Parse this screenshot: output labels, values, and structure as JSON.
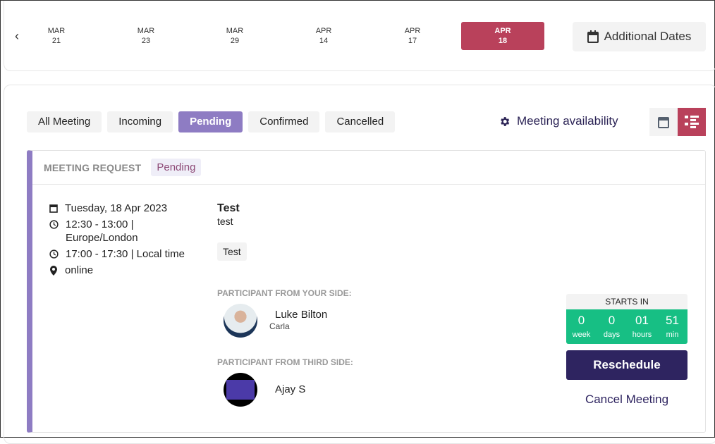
{
  "dates": [
    {
      "m": "MAR",
      "d": "21"
    },
    {
      "m": "MAR",
      "d": "23"
    },
    {
      "m": "MAR",
      "d": "29"
    },
    {
      "m": "APR",
      "d": "14"
    },
    {
      "m": "APR",
      "d": "17"
    },
    {
      "m": "APR",
      "d": "18",
      "selected": true
    }
  ],
  "additional_dates": "Additional Dates",
  "tabs": [
    "All Meeting",
    "Incoming",
    "Pending",
    "Confirmed",
    "Cancelled"
  ],
  "active_tab": "Pending",
  "availability": "Meeting availability",
  "colors": {
    "accent": "#b9415b",
    "purple": "#8e7cc3",
    "navy": "#2e2460",
    "green": "#17bf84"
  },
  "card": {
    "type": "MEETING REQUEST",
    "status": "Pending",
    "date": "Tuesday, 18 Apr 2023",
    "time1": "12:30 - 13:00 |",
    "tz": "Europe/London",
    "time2": "17:00 - 17:30 | Local time",
    "location": "online",
    "title": "Test",
    "description": "test",
    "tag": "Test",
    "your_side_label": "PARTICIPANT FROM YOUR SIDE:",
    "your_name": "Luke Bilton",
    "your_company": "Carla",
    "third_side_label": "PARTICIPANT FROM THIRD SIDE:",
    "third_name": "Ajay S",
    "starts_in": "STARTS IN",
    "countdown": [
      {
        "v": "0",
        "u": "week"
      },
      {
        "v": "0",
        "u": "days"
      },
      {
        "v": "01",
        "u": "hours"
      },
      {
        "v": "51",
        "u": "min"
      }
    ],
    "reschedule": "Reschedule",
    "cancel": "Cancel Meeting"
  }
}
